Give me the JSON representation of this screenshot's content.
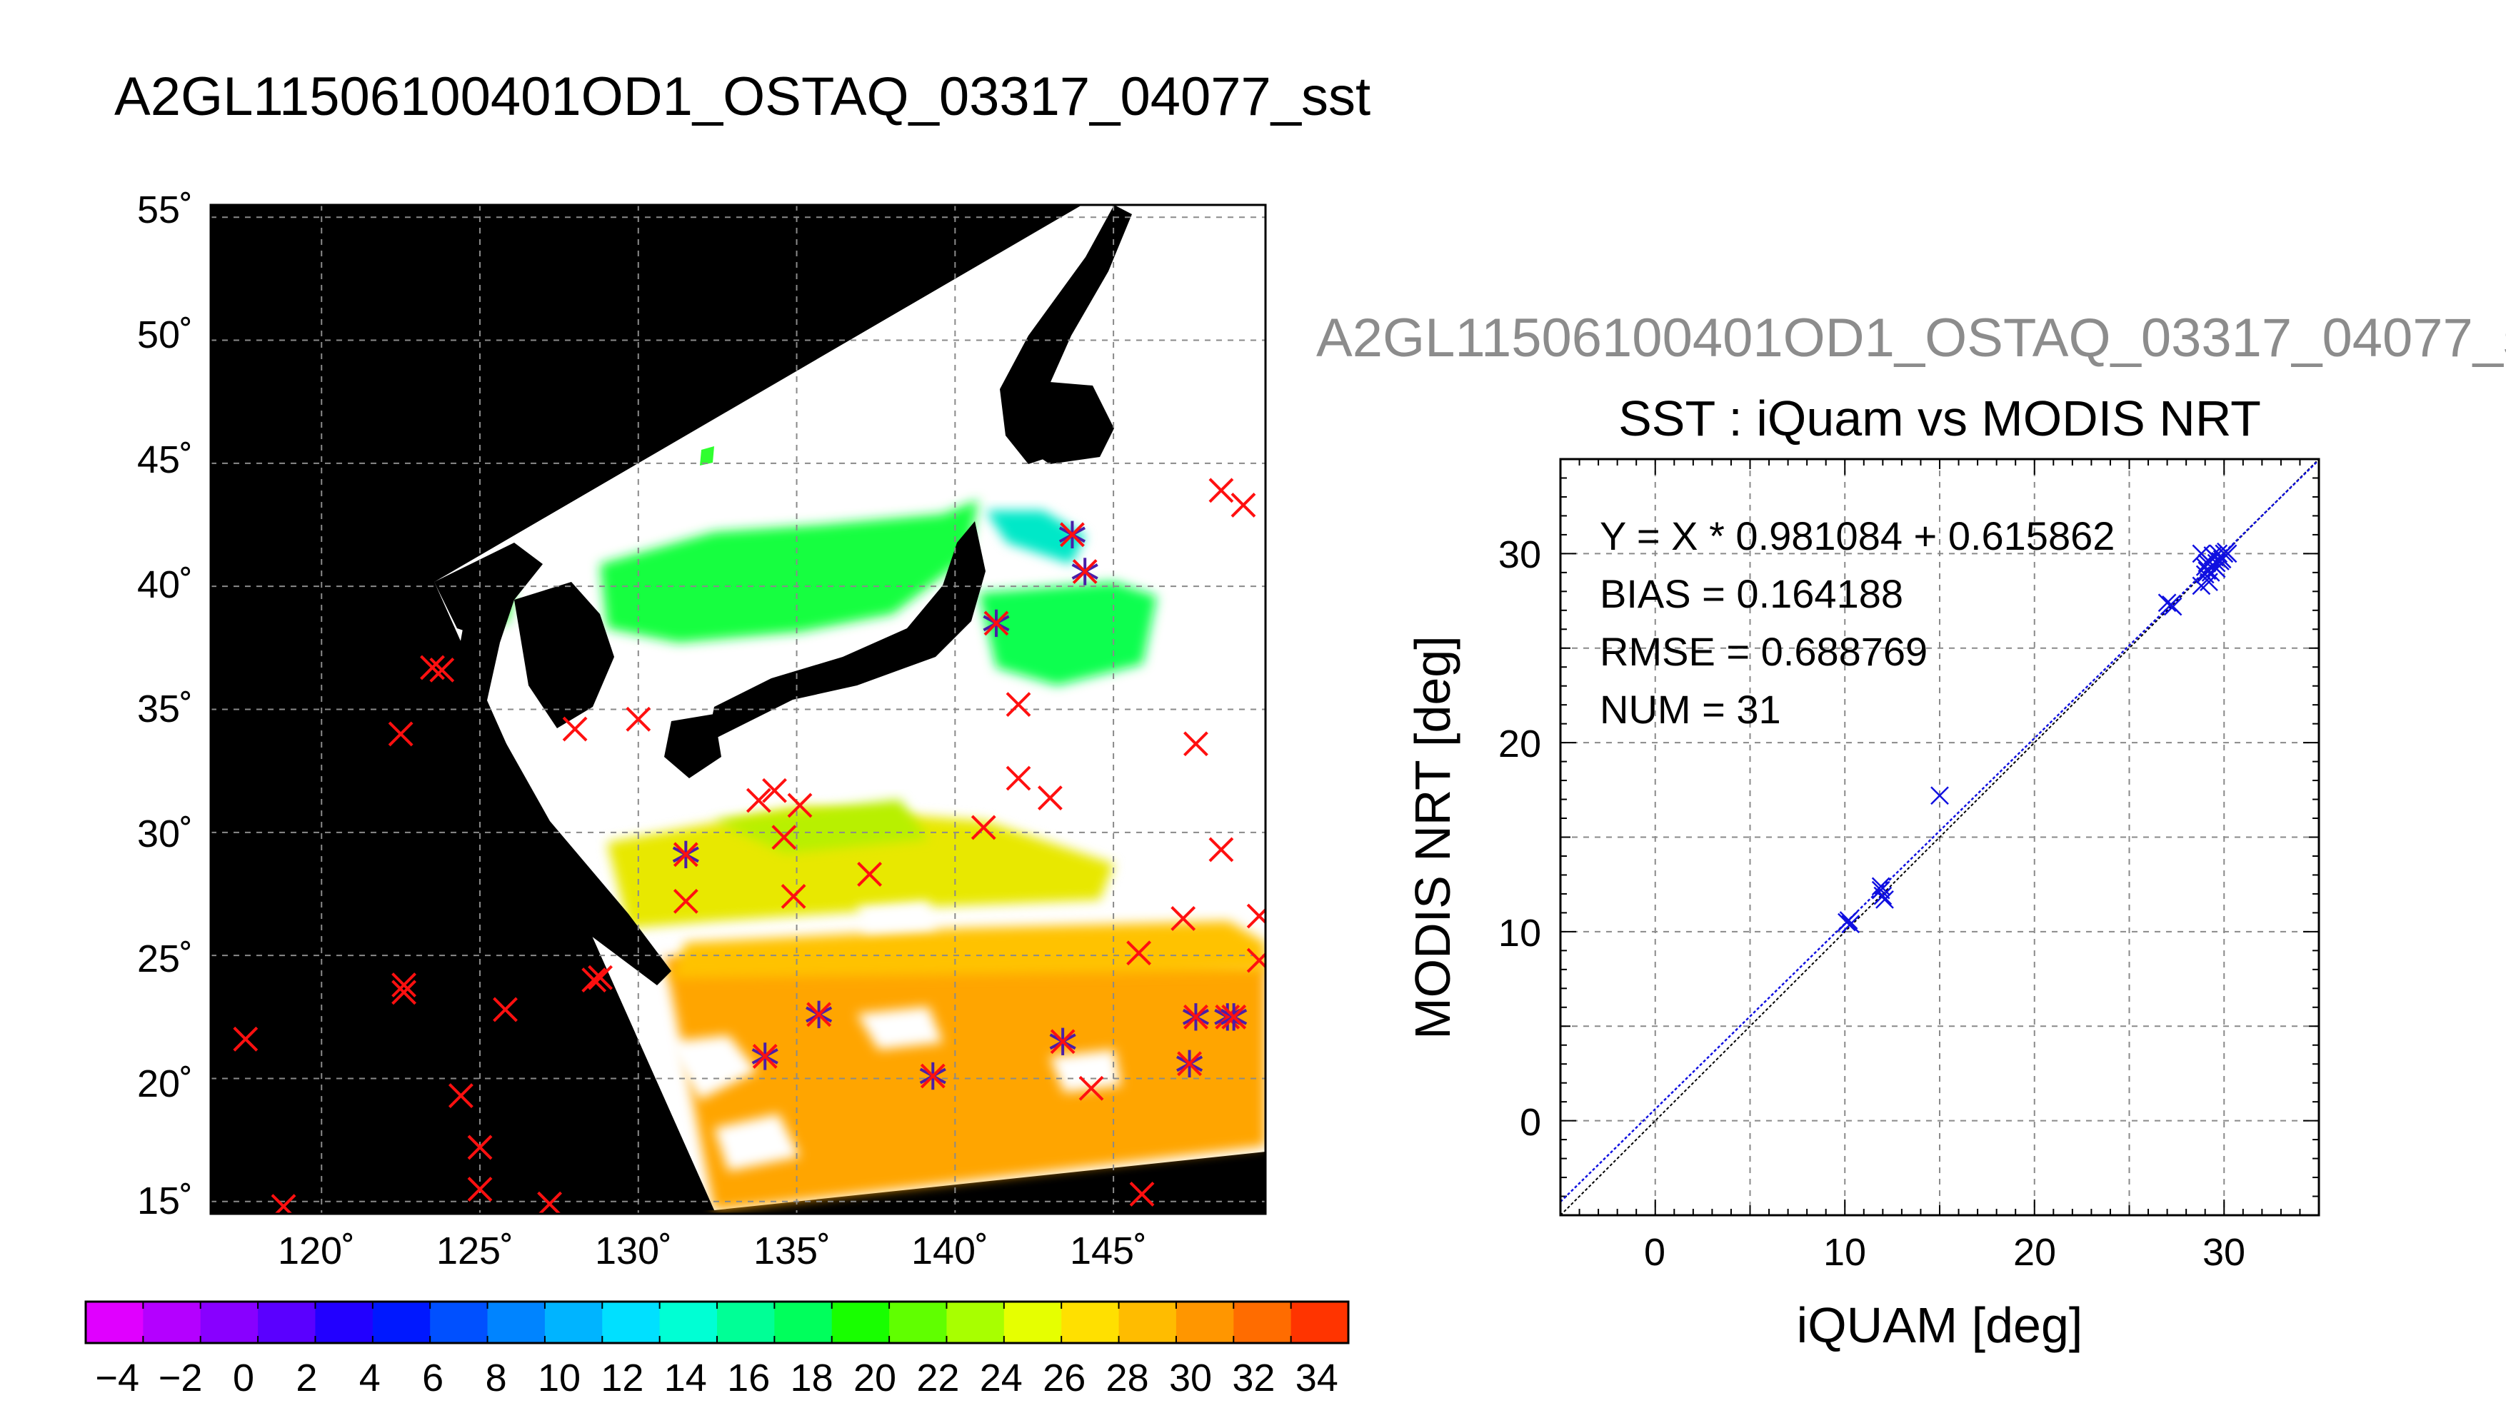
{
  "map": {
    "title": "A2GL11506100401OD1_OSTAQ_03317_04077_sst",
    "lat_labels": [
      "55˚",
      "50˚",
      "45˚",
      "40˚",
      "35˚",
      "30˚",
      "25˚",
      "20˚",
      "15˚"
    ],
    "lon_labels": [
      "120˚",
      "125˚",
      "130˚",
      "135˚",
      "140˚",
      "145˚"
    ],
    "lat_range": [
      14.5,
      55.5
    ],
    "lon_range": [
      116.5,
      149.8
    ],
    "background_color": "#000000",
    "cloud_color": "#ffffff",
    "buoy_marks": [
      {
        "lon": 117.6,
        "lat": 21.6,
        "match": false
      },
      {
        "lon": 118.8,
        "lat": 14.8,
        "match": false
      },
      {
        "lon": 122.6,
        "lat": 23.8,
        "match": false
      },
      {
        "lon": 122.6,
        "lat": 23.5,
        "match": false
      },
      {
        "lon": 122.5,
        "lat": 34.0,
        "match": false
      },
      {
        "lon": 123.5,
        "lat": 36.7,
        "match": false
      },
      {
        "lon": 123.8,
        "lat": 36.6,
        "match": false
      },
      {
        "lon": 124.4,
        "lat": 19.3,
        "match": false
      },
      {
        "lon": 125.0,
        "lat": 17.2,
        "match": false
      },
      {
        "lon": 125.0,
        "lat": 15.5,
        "match": false
      },
      {
        "lon": 125.8,
        "lat": 22.8,
        "match": false
      },
      {
        "lon": 127.2,
        "lat": 14.9,
        "match": false
      },
      {
        "lon": 128.6,
        "lat": 24.0,
        "match": false
      },
      {
        "lon": 128.8,
        "lat": 24.1,
        "match": false
      },
      {
        "lon": 128.0,
        "lat": 34.2,
        "match": false
      },
      {
        "lon": 130.0,
        "lat": 34.6,
        "match": false
      },
      {
        "lon": 131.5,
        "lat": 29.1,
        "match": true
      },
      {
        "lon": 131.5,
        "lat": 27.2,
        "match": false
      },
      {
        "lon": 133.8,
        "lat": 31.3,
        "match": false
      },
      {
        "lon": 134.3,
        "lat": 31.7,
        "match": false
      },
      {
        "lon": 134.6,
        "lat": 29.8,
        "match": false
      },
      {
        "lon": 134.9,
        "lat": 27.4,
        "match": false
      },
      {
        "lon": 135.1,
        "lat": 31.1,
        "match": false
      },
      {
        "lon": 137.3,
        "lat": 28.3,
        "match": false
      },
      {
        "lon": 134.0,
        "lat": 20.9,
        "match": true
      },
      {
        "lon": 135.7,
        "lat": 22.6,
        "match": true
      },
      {
        "lon": 139.3,
        "lat": 20.1,
        "match": true
      },
      {
        "lon": 140.9,
        "lat": 30.2,
        "match": false
      },
      {
        "lon": 141.3,
        "lat": 38.5,
        "match": true
      },
      {
        "lon": 142.0,
        "lat": 32.2,
        "match": false
      },
      {
        "lon": 142.0,
        "lat": 35.2,
        "match": false
      },
      {
        "lon": 143.0,
        "lat": 31.4,
        "match": false
      },
      {
        "lon": 143.4,
        "lat": 21.5,
        "match": true
      },
      {
        "lon": 143.7,
        "lat": 42.1,
        "match": true
      },
      {
        "lon": 144.1,
        "lat": 40.6,
        "match": true
      },
      {
        "lon": 144.3,
        "lat": 19.6,
        "match": false
      },
      {
        "lon": 145.8,
        "lat": 25.1,
        "match": false
      },
      {
        "lon": 145.9,
        "lat": 15.3,
        "match": false
      },
      {
        "lon": 147.4,
        "lat": 20.6,
        "match": true
      },
      {
        "lon": 147.2,
        "lat": 26.5,
        "match": false
      },
      {
        "lon": 147.6,
        "lat": 22.5,
        "match": true
      },
      {
        "lon": 148.6,
        "lat": 22.5,
        "match": true
      },
      {
        "lon": 148.8,
        "lat": 22.5,
        "match": true
      },
      {
        "lon": 147.6,
        "lat": 33.6,
        "match": false
      },
      {
        "lon": 148.4,
        "lat": 29.3,
        "match": false
      },
      {
        "lon": 148.4,
        "lat": 43.9,
        "match": false
      },
      {
        "lon": 149.1,
        "lat": 43.3,
        "match": false
      },
      {
        "lon": 149.6,
        "lat": 26.6,
        "match": false
      },
      {
        "lon": 149.6,
        "lat": 24.8,
        "match": false
      }
    ]
  },
  "colorbar": {
    "tick_labels": [
      "−4",
      "−2",
      "0",
      "2",
      "4",
      "6",
      "8",
      "10",
      "12",
      "14",
      "16",
      "18",
      "20",
      "22",
      "24",
      "26",
      "28",
      "30",
      "32",
      "34"
    ],
    "min": -5,
    "max": 35,
    "colors": [
      "#e000ff",
      "#b400ff",
      "#8800ff",
      "#5a00ff",
      "#2200ff",
      "#0018ff",
      "#0050ff",
      "#0084ff",
      "#00b4ff",
      "#00e0ff",
      "#00ffd4",
      "#00ff96",
      "#00ff5c",
      "#18ff00",
      "#60ff00",
      "#a8ff00",
      "#e6ff00",
      "#ffe000",
      "#ffbc00",
      "#ff9600",
      "#ff6c00",
      "#ff3400"
    ]
  },
  "scatter": {
    "file_title": "A2GL11506100401OD1_OSTAQ_03317_04077_s",
    "title": "SST : iQuam vs MODIS NRT",
    "stats": {
      "regression": "Y = X * 0.981084 + 0.615862",
      "bias": "BIAS = 0.164188",
      "rmse": "RMSE = 0.688769",
      "num": "NUM = 31"
    },
    "marker_color": "#1010e0"
  },
  "chart_data": {
    "type": "scatter",
    "title": "SST : iQuam vs MODIS NRT",
    "xlabel": "iQUAM [deg]",
    "ylabel": "MODIS NRT [deg]",
    "xlim": [
      -5,
      35
    ],
    "ylim": [
      -5,
      35
    ],
    "xticks": [
      "0",
      "10",
      "20",
      "30"
    ],
    "yticks": [
      "0",
      "10",
      "20",
      "30"
    ],
    "grid": true,
    "points": [
      [
        10.1,
        10.5
      ],
      [
        10.3,
        10.4
      ],
      [
        10.2,
        10.6
      ],
      [
        11.9,
        12.4
      ],
      [
        12.0,
        11.9
      ],
      [
        11.9,
        12.2
      ],
      [
        12.1,
        11.7
      ],
      [
        15.0,
        17.2
      ],
      [
        27.0,
        27.4
      ],
      [
        27.2,
        27.3
      ],
      [
        27.3,
        27.2
      ],
      [
        28.8,
        28.3
      ],
      [
        28.8,
        30.0
      ],
      [
        29.0,
        29.3
      ],
      [
        29.1,
        29.1
      ],
      [
        29.2,
        29.6
      ],
      [
        29.2,
        28.5
      ],
      [
        29.3,
        29.0
      ],
      [
        29.4,
        29.4
      ],
      [
        29.5,
        29.8
      ],
      [
        29.6,
        29.2
      ],
      [
        29.7,
        30.0
      ],
      [
        29.8,
        29.6
      ],
      [
        29.9,
        29.7
      ],
      [
        30.0,
        30.0
      ],
      [
        30.1,
        30.1
      ],
      [
        29.1,
        29.5
      ],
      [
        29.0,
        28.9
      ],
      [
        29.4,
        29.9
      ],
      [
        29.6,
        29.5
      ],
      [
        30.2,
        30.0
      ]
    ],
    "reference_line": {
      "slope": 1,
      "intercept": 0
    },
    "fit_line": {
      "slope": 0.981084,
      "intercept": 0.615862
    }
  }
}
